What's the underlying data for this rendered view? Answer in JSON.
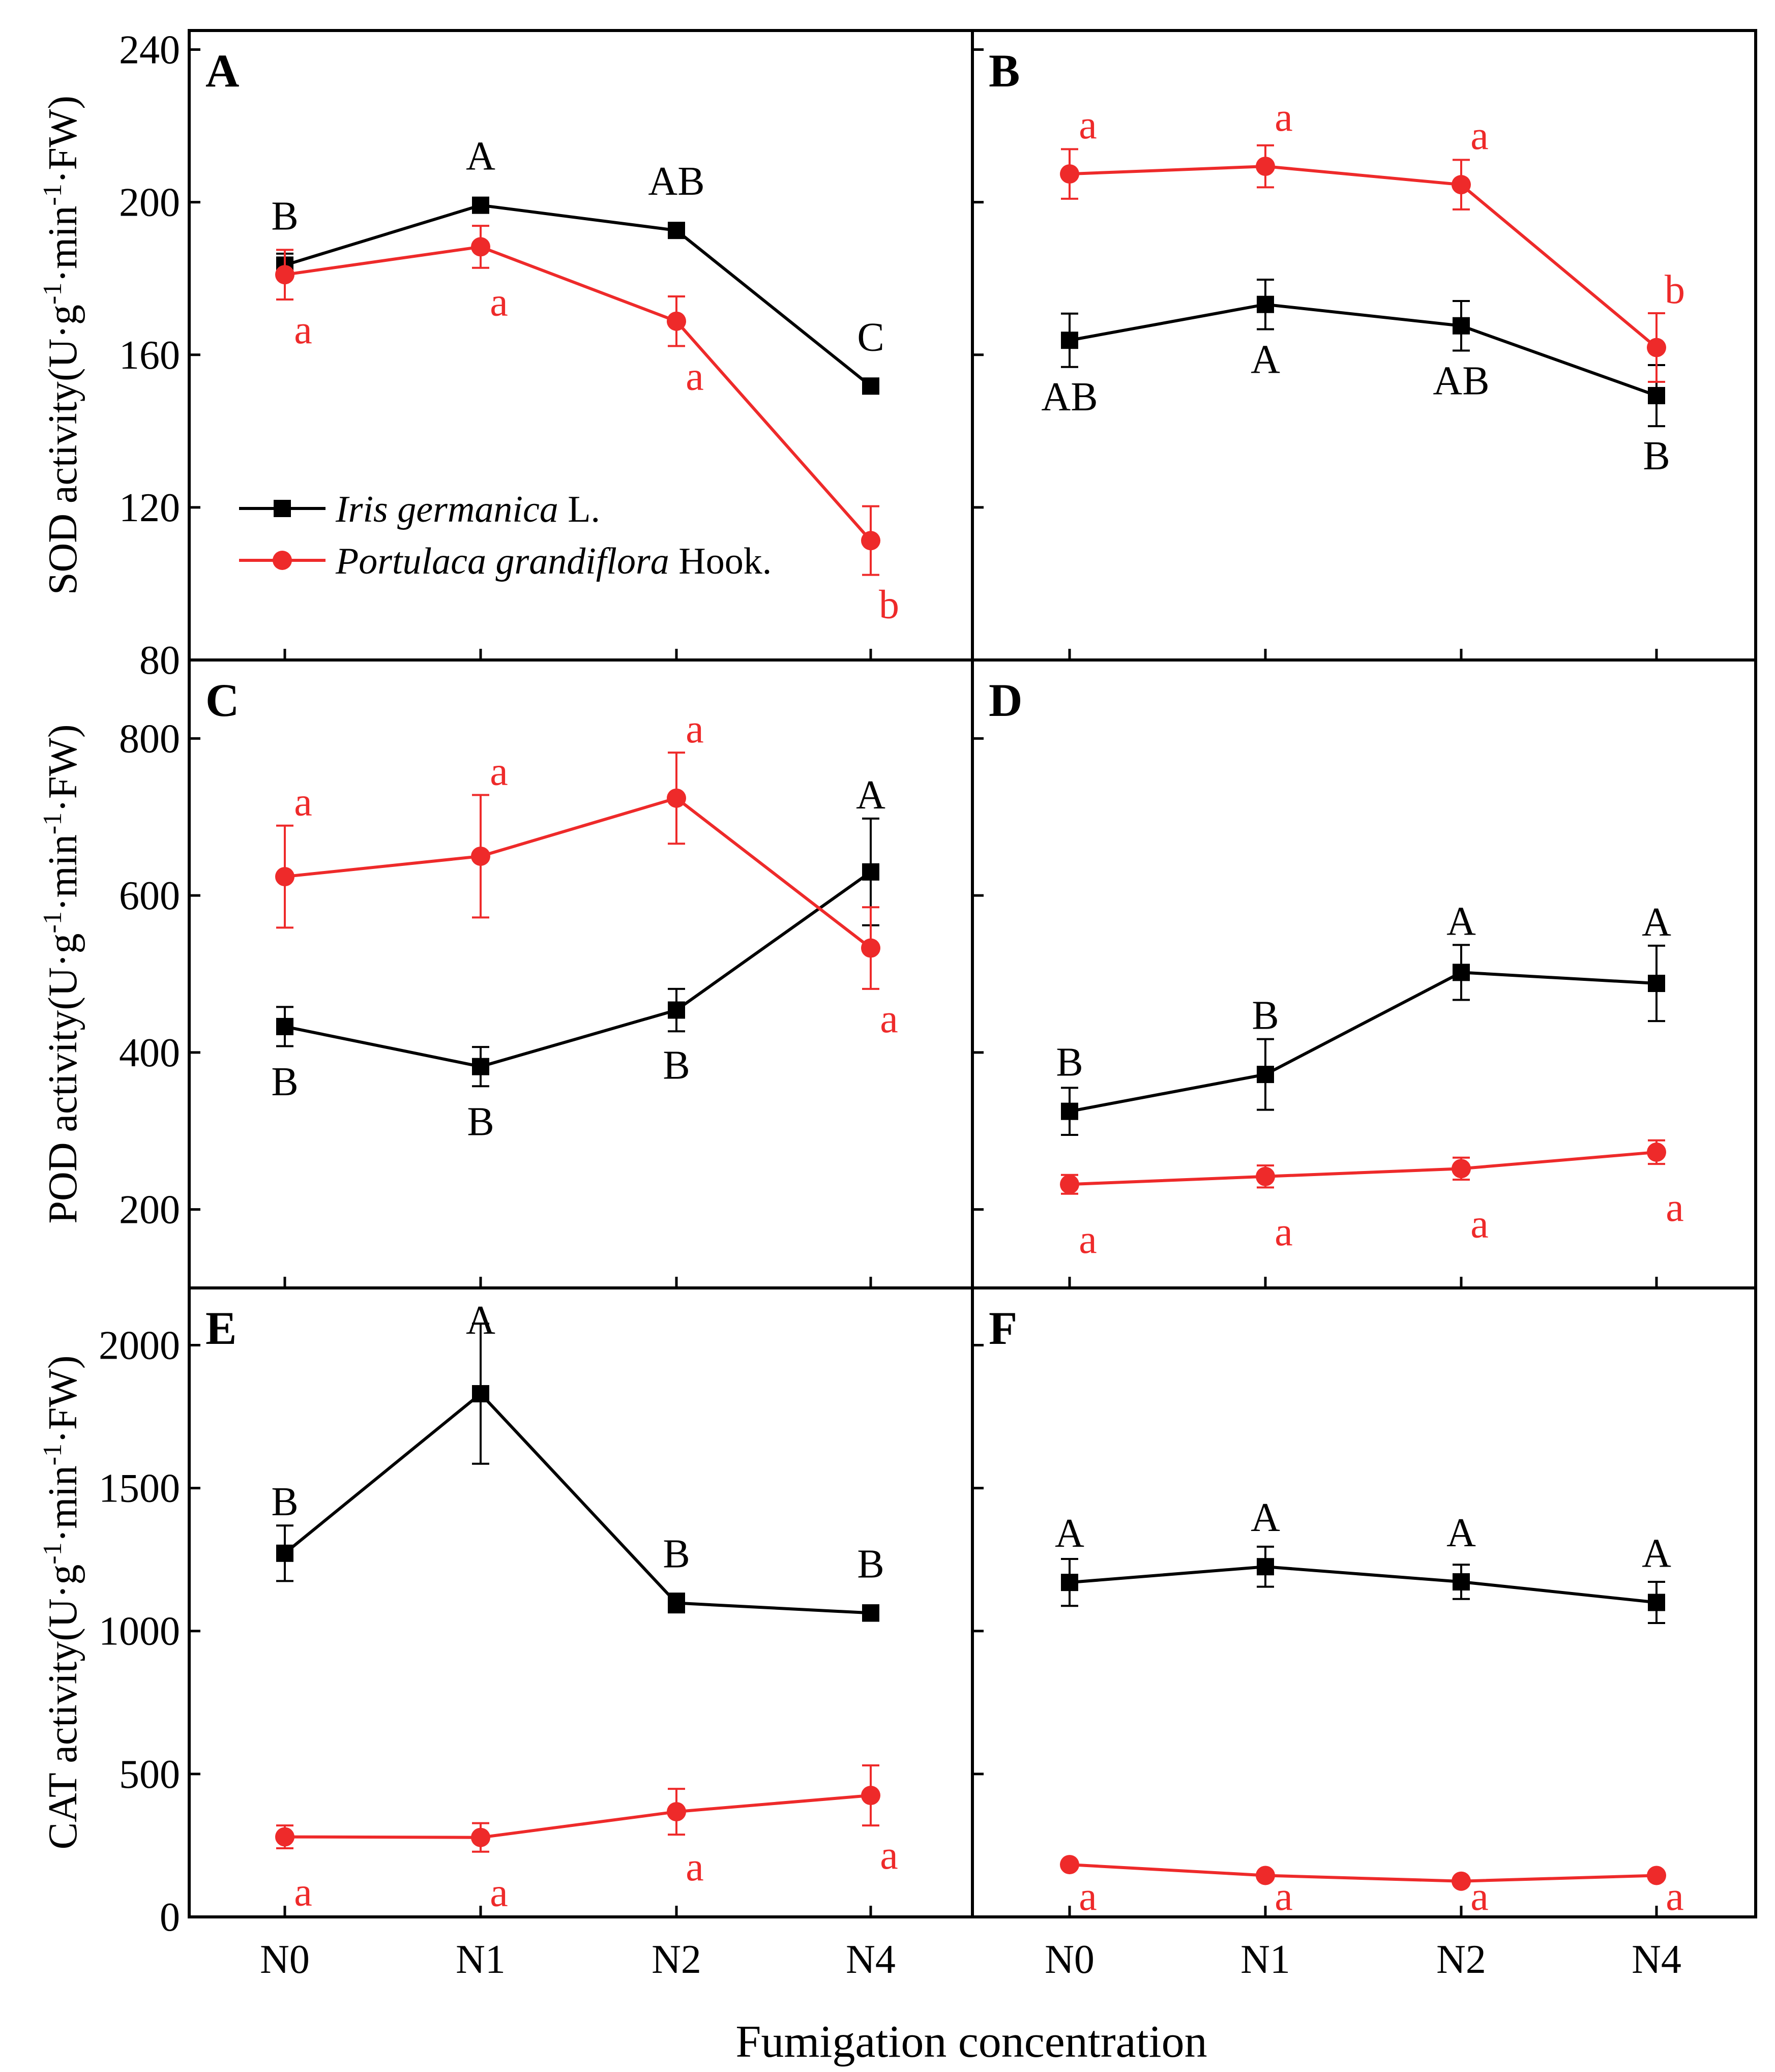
{
  "figure": {
    "xlabel": "Fumigation concentration",
    "ylabel_prefix": {
      "SOD": "SOD activity",
      "POD": "POD activity",
      "CAT": "CAT activity"
    },
    "unit_parts": [
      "(U·g",
      "-1",
      "·min",
      "-1",
      "·FW)"
    ],
    "legend": [
      {
        "italic": "Iris germanica",
        "normal": " L.",
        "marker": "square",
        "color": "#000000"
      },
      {
        "italic": "Portulaca grandiflora",
        "normal": " Hook.",
        "marker": "circle",
        "color": "#ee2a2a"
      }
    ],
    "colors": {
      "iris": "#000000",
      "portulaca": "#ee2a2a",
      "frame": "#000000"
    }
  },
  "chart_data": [
    {
      "panel": "A",
      "type": "line",
      "metric": "SOD",
      "categories": [
        "N0",
        "N1",
        "N2",
        "N4"
      ],
      "ylim": [
        80,
        245
      ],
      "yticks": [
        80,
        120,
        160,
        200,
        240
      ],
      "series": [
        {
          "name": "Iris germanica L.",
          "values": [
            183.5,
            199.2,
            192.6,
            151.8
          ],
          "errors": [
            3,
            1.5,
            1.5,
            1.5
          ],
          "letters": [
            "B",
            "A",
            "AB",
            "C"
          ]
        },
        {
          "name": "Portulaca grandiflora Hook.",
          "values": [
            181,
            188.3,
            168.8,
            111.3
          ],
          "errors": [
            6.5,
            5.5,
            6.5,
            9
          ],
          "letters": [
            "a",
            "a",
            "a",
            "b"
          ]
        }
      ]
    },
    {
      "panel": "B",
      "type": "line",
      "metric": "SOD",
      "categories": [
        "N0",
        "N1",
        "N2",
        "N4"
      ],
      "ylim": [
        80,
        245
      ],
      "yticks": [
        80,
        120,
        160,
        200,
        240
      ],
      "series": [
        {
          "name": "Iris germanica L.",
          "values": [
            163.8,
            173.2,
            167.6,
            149.3
          ],
          "errors": [
            7,
            6.5,
            6.5,
            8
          ],
          "letters": [
            "AB",
            "A",
            "AB",
            "B"
          ]
        },
        {
          "name": "Portulaca grandiflora Hook.",
          "values": [
            207.4,
            209.4,
            204.6,
            161.9
          ],
          "errors": [
            6.5,
            5.5,
            6.5,
            9
          ],
          "letters": [
            "a",
            "a",
            "a",
            "b"
          ]
        }
      ]
    },
    {
      "panel": "C",
      "type": "line",
      "metric": "POD",
      "categories": [
        "N0",
        "N1",
        "N2",
        "N4"
      ],
      "ylim": [
        100,
        900
      ],
      "yticks": [
        200,
        400,
        600,
        800
      ],
      "series": [
        {
          "name": "Iris germanica L.",
          "values": [
            433,
            382,
            454,
            630
          ],
          "errors": [
            25,
            25,
            27,
            68
          ],
          "letters": [
            "B",
            "B",
            "B",
            "A"
          ]
        },
        {
          "name": "Portulaca grandiflora Hook.",
          "values": [
            624,
            650,
            724,
            533
          ],
          "errors": [
            65,
            78,
            58,
            52
          ],
          "letters": [
            "a",
            "a",
            "a",
            "a"
          ]
        }
      ]
    },
    {
      "panel": "D",
      "type": "line",
      "metric": "POD",
      "categories": [
        "N0",
        "N1",
        "N2",
        "N4"
      ],
      "ylim": [
        100,
        900
      ],
      "yticks": [
        200,
        400,
        600,
        800
      ],
      "series": [
        {
          "name": "Iris germanica L.",
          "values": [
            325,
            372,
            502,
            488
          ],
          "errors": [
            30,
            45,
            35,
            48
          ],
          "letters": [
            "B",
            "B",
            "A",
            "A"
          ]
        },
        {
          "name": "Portulaca grandiflora Hook.",
          "values": [
            232,
            242,
            252,
            273
          ],
          "errors": [
            12,
            14,
            14,
            15
          ],
          "letters": [
            "a",
            "a",
            "a",
            "a"
          ]
        }
      ]
    },
    {
      "panel": "E",
      "type": "line",
      "metric": "CAT",
      "categories": [
        "N0",
        "N1",
        "N2",
        "N4"
      ],
      "ylim": [
        0,
        2200
      ],
      "yticks": [
        0,
        500,
        1000,
        1500,
        2000
      ],
      "series": [
        {
          "name": "Iris germanica L.",
          "values": [
            1272,
            1830,
            1098,
            1063
          ],
          "errors": [
            97,
            245,
            33,
            27
          ],
          "letters": [
            "B",
            "A",
            "B",
            "B"
          ]
        },
        {
          "name": "Portulaca grandiflora Hook.",
          "values": [
            280,
            278,
            368,
            425
          ],
          "errors": [
            40,
            50,
            80,
            105
          ],
          "letters": [
            "a",
            "a",
            "a",
            "a"
          ]
        }
      ]
    },
    {
      "panel": "F",
      "type": "line",
      "metric": "CAT",
      "categories": [
        "N0",
        "N1",
        "N2",
        "N4"
      ],
      "ylim": [
        0,
        2200
      ],
      "yticks": [
        0,
        500,
        1000,
        1500,
        2000
      ],
      "series": [
        {
          "name": "Iris germanica L.",
          "values": [
            1170,
            1225,
            1172,
            1100
          ],
          "errors": [
            82,
            70,
            60,
            72
          ],
          "letters": [
            "A",
            "A",
            "A",
            "A"
          ]
        },
        {
          "name": "Portulaca grandiflora Hook.",
          "values": [
            183,
            145,
            125,
            145
          ],
          "errors": [
            8,
            8,
            8,
            8
          ],
          "letters": [
            "a",
            "a",
            "a",
            "a"
          ]
        }
      ]
    }
  ]
}
